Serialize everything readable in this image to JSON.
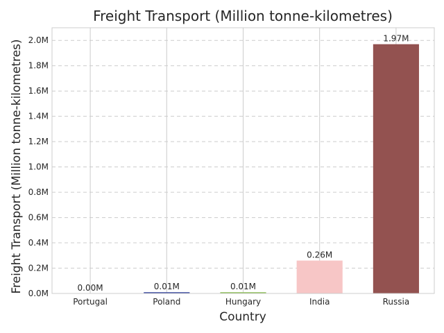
{
  "chart_data": {
    "type": "bar",
    "title": "Freight Transport (Million tonne-kilometres)",
    "xlabel": "Country",
    "ylabel": "Freight Transport (Million tonne-kilometres)",
    "categories": [
      "Portugal",
      "Poland",
      "Hungary",
      "India",
      "Russia"
    ],
    "values": [
      0.0,
      0.01,
      0.01,
      0.26,
      1.97
    ],
    "value_labels": [
      "0.00M",
      "0.01M",
      "0.01M",
      "0.26M",
      "1.97M"
    ],
    "colors": [
      "#5a6fa3",
      "#3b4aa0",
      "#8fbf5a",
      "#f7c6c6",
      "#935250"
    ],
    "ylim": [
      0,
      2.1
    ],
    "yticks": [
      0,
      0.2,
      0.4,
      0.6,
      0.8,
      1.0,
      1.2,
      1.4,
      1.6,
      1.8,
      2.0
    ],
    "ytick_labels": [
      "0.0M",
      "0.2M",
      "0.4M",
      "0.6M",
      "0.8M",
      "1.0M",
      "1.2M",
      "1.4M",
      "1.6M",
      "1.8M",
      "2.0M"
    ],
    "grid": true
  }
}
